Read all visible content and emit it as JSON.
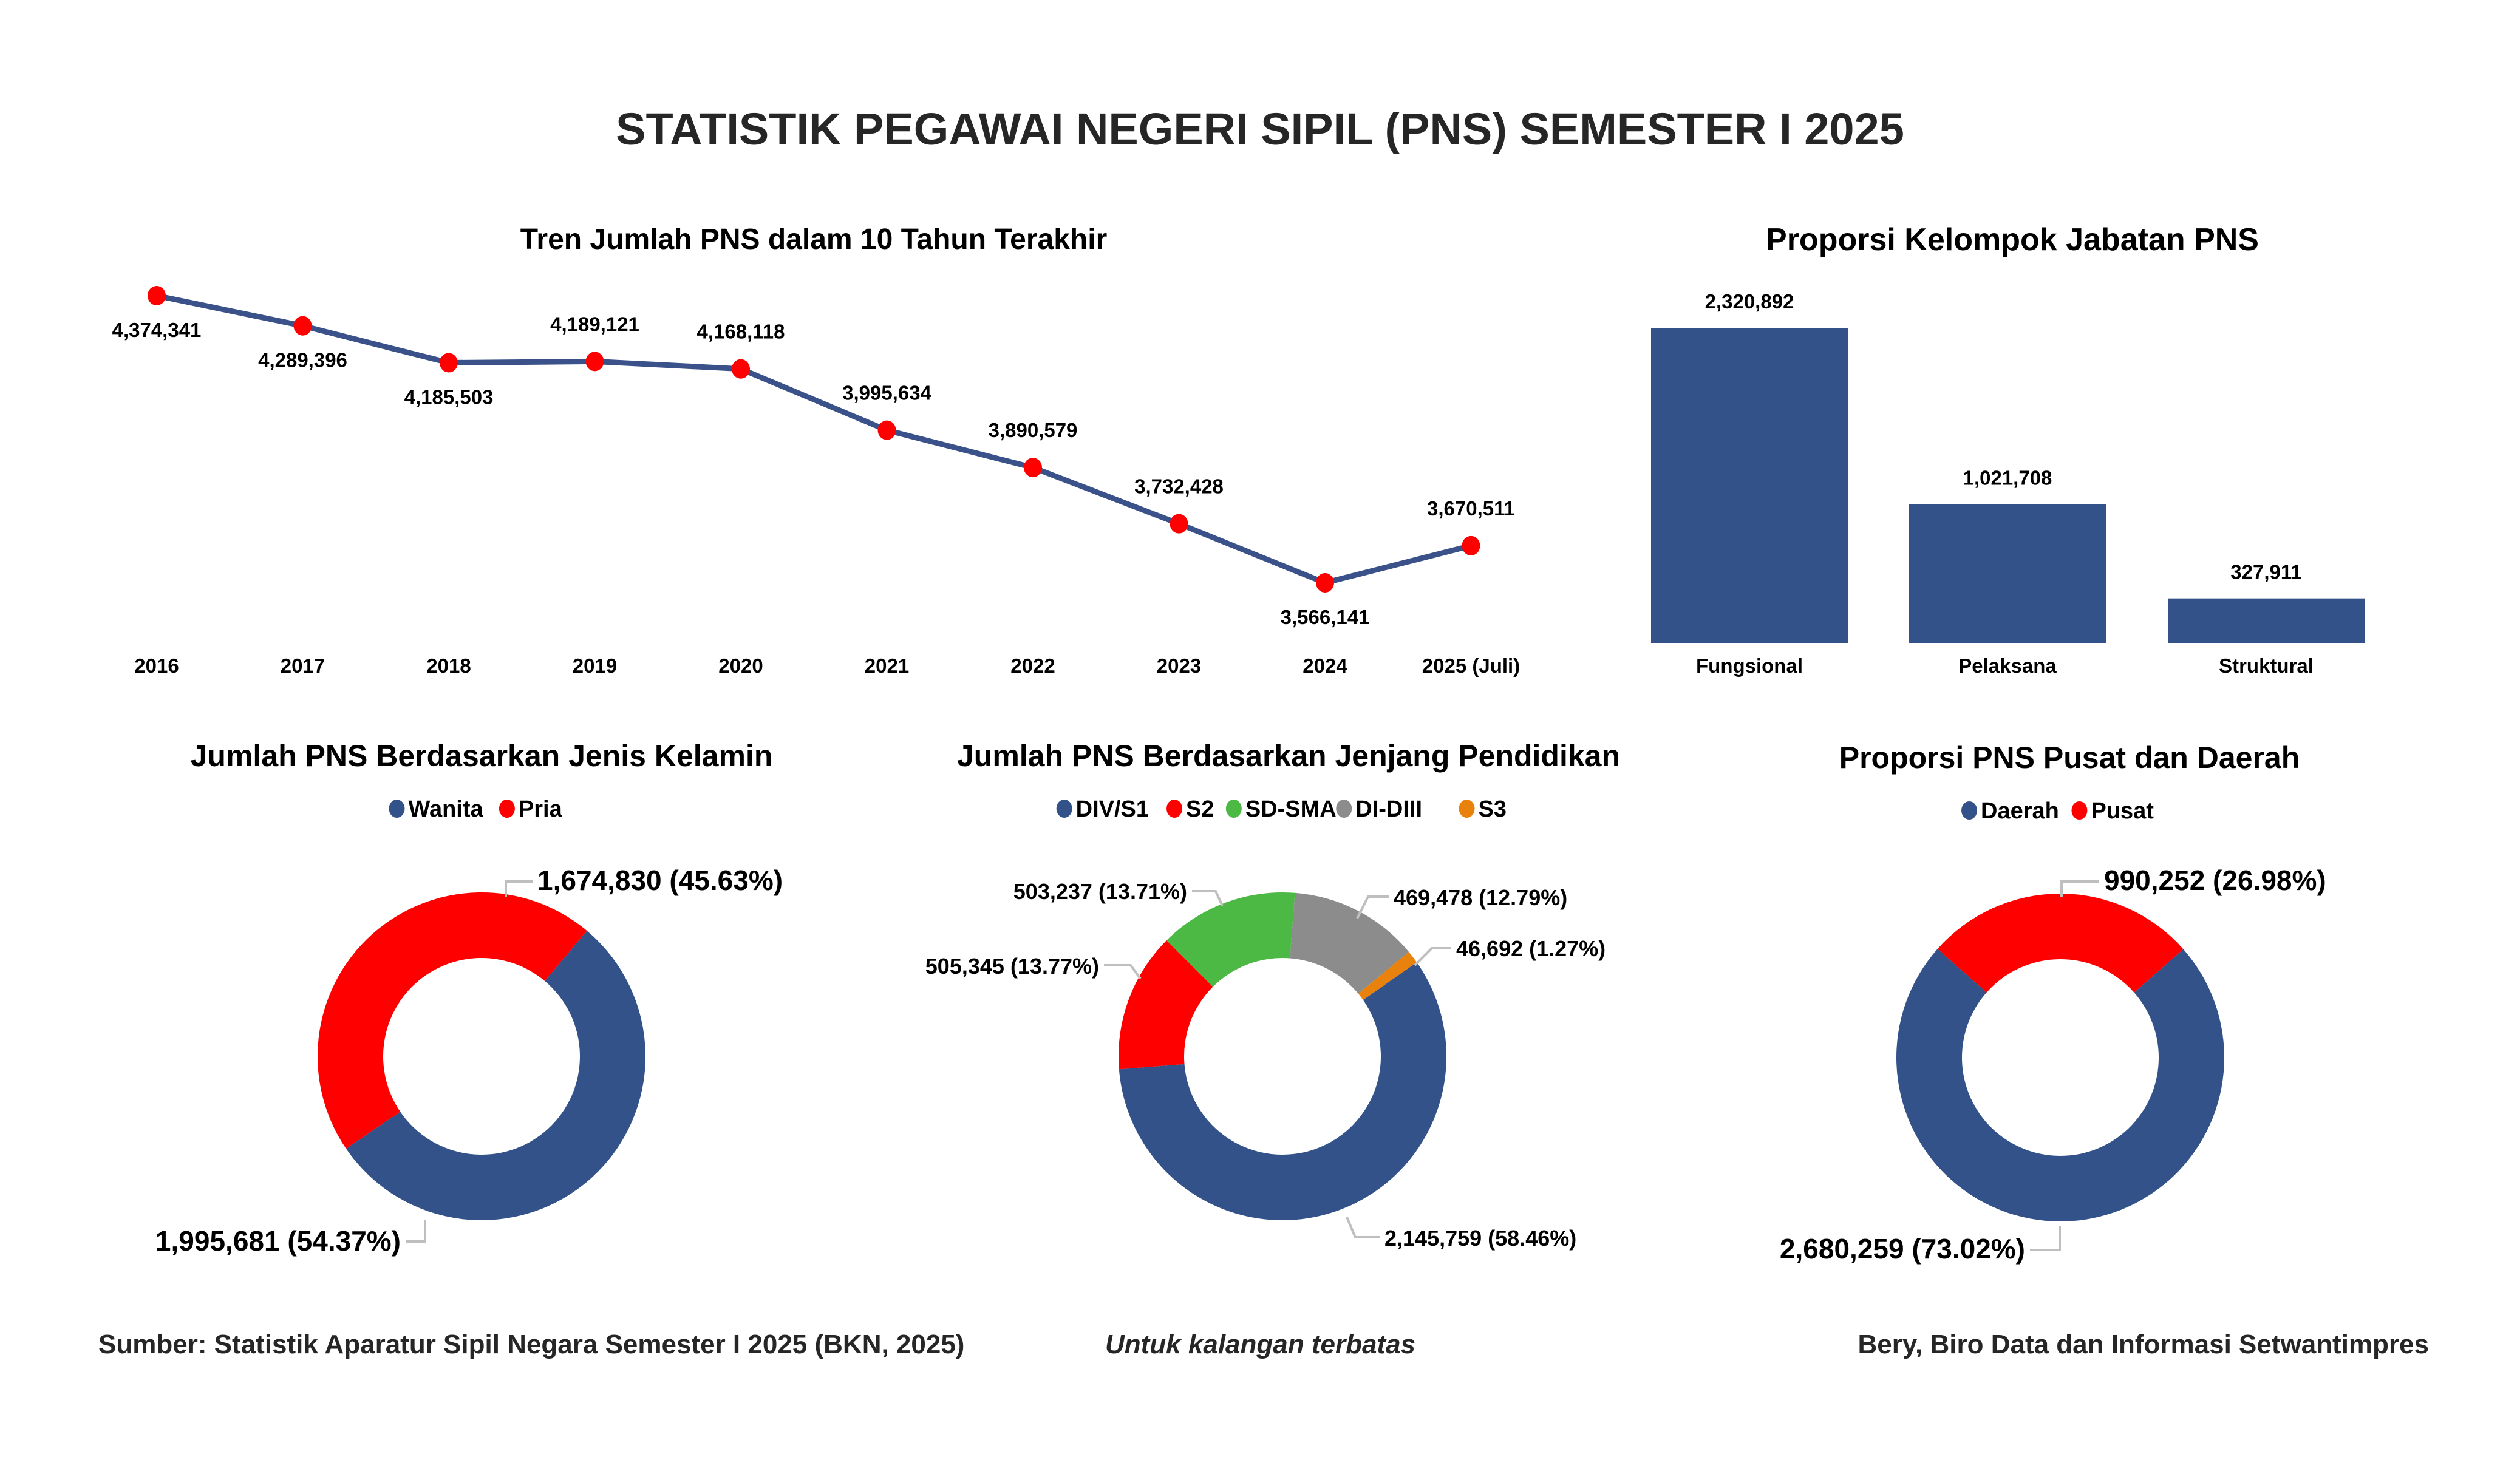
{
  "title": "STATISTIK PEGAWAI NEGERI SIPIL (PNS) SEMESTER I 2025",
  "colors": {
    "blue": "#335289",
    "red": "#FF0000",
    "green": "#4CB944",
    "gray": "#8C8C8C",
    "orange": "#E8820C",
    "line": "#3A5289",
    "text": "#000000"
  },
  "chart_data": [
    {
      "type": "line",
      "title": "Tren Jumlah PNS dalam 10 Tahun Terakhir",
      "categories": [
        "2016",
        "2017",
        "2018",
        "2019",
        "2020",
        "2021",
        "2022",
        "2023",
        "2024",
        "2025 (Juli)"
      ],
      "values": [
        4374341,
        4289396,
        4185503,
        4189121,
        4168118,
        3995634,
        3890579,
        3732428,
        3566141,
        3670511
      ],
      "labels": [
        "4,374,341",
        "4,289,396",
        "4,185,503",
        "4,189,121",
        "4,168,118",
        "3,995,634",
        "3,890,579",
        "3,732,428",
        "3,566,141",
        "3,670,511"
      ],
      "label_position": [
        "below",
        "below",
        "below",
        "above",
        "above",
        "above",
        "above",
        "above",
        "below",
        "above"
      ],
      "xlabel": "",
      "ylabel": "",
      "grid": false,
      "legend": "none"
    },
    {
      "type": "bar",
      "title": "Proporsi Kelompok Jabatan PNS",
      "categories": [
        "Fungsional",
        "Pelaksana",
        "Struktural"
      ],
      "values": [
        2320892,
        1021708,
        327911
      ],
      "labels": [
        "2,320,892",
        "1,021,708",
        "327,911"
      ],
      "ylim": [
        0,
        2320892
      ],
      "xlabel": "",
      "ylabel": "",
      "grid": false,
      "legend": "none"
    },
    {
      "type": "pie",
      "donut": true,
      "title": "Jumlah PNS Berdasarkan Jenis Kelamin",
      "categories": [
        "Wanita",
        "Pria"
      ],
      "values": [
        1995681,
        1674830
      ],
      "percents": [
        54.37,
        45.63
      ],
      "labels": [
        "1,995,681 (54.37%)",
        "1,674,830 (45.63%)"
      ],
      "colors": [
        "#335289",
        "#FF0000"
      ],
      "start_angle_deg": 40,
      "legend": "top"
    },
    {
      "type": "pie",
      "donut": true,
      "title": "Jumlah PNS Berdasarkan Jenjang Pendidikan",
      "categories": [
        "DIV/S1",
        "S2",
        "SD-SMA",
        "DI-DIII",
        "S3"
      ],
      "values": [
        2145759,
        505345,
        503237,
        469478,
        46692
      ],
      "percents": [
        58.46,
        13.77,
        13.71,
        12.79,
        1.27
      ],
      "labels": [
        "2,145,759 (58.46%)",
        "505,345 (13.77%)",
        "503,237 (13.71%)",
        "469,478 (12.79%)",
        "46,692 (1.27%)"
      ],
      "colors": [
        "#335289",
        "#FF0000",
        "#4CB944",
        "#8C8C8C",
        "#E8820C"
      ],
      "start_angle_deg": 55,
      "legend": "top"
    },
    {
      "type": "pie",
      "donut": true,
      "title": "Proporsi PNS Pusat dan Daerah",
      "categories": [
        "Daerah",
        "Pusat"
      ],
      "values": [
        2680259,
        990252
      ],
      "percents": [
        73.02,
        26.98
      ],
      "labels": [
        "2,680,259 (73.02%)",
        "990,252 (26.98%)"
      ],
      "colors": [
        "#335289",
        "#FF0000"
      ],
      "start_angle_deg": 48.6,
      "legend": "top"
    }
  ],
  "footer": {
    "source": "Sumber: Statistik Aparatur Sipil Negara Semester I 2025 (BKN, 2025)",
    "note": "Untuk kalangan terbatas",
    "credit": "Bery, Biro Data dan Informasi Setwantimpres"
  }
}
